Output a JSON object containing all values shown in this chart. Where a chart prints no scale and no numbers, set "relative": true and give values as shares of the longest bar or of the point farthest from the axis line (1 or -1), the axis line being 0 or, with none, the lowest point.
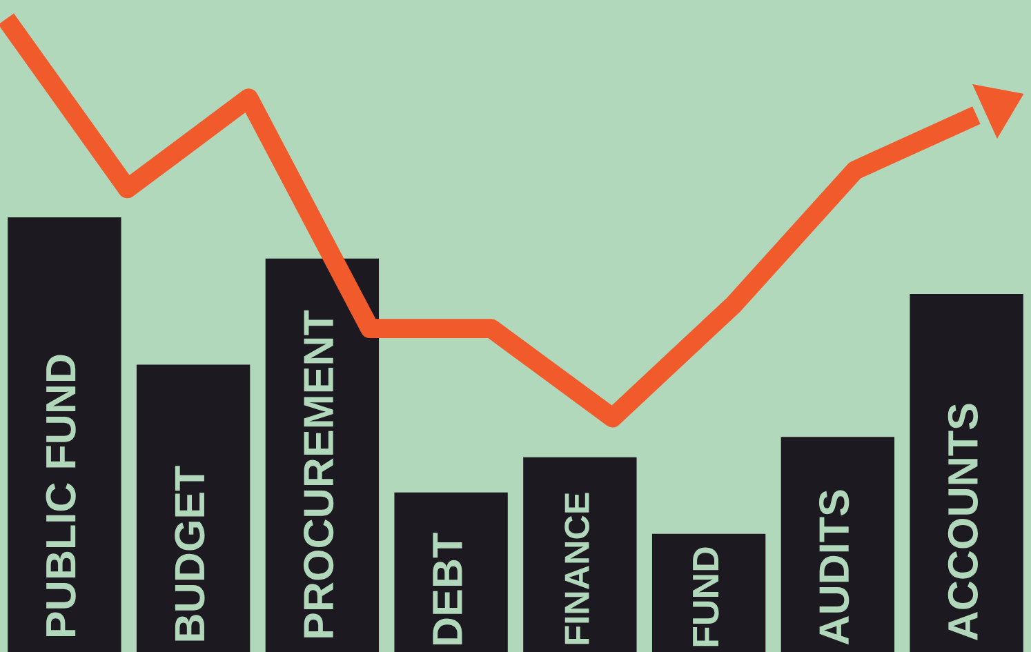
{
  "chart_data": [
    {
      "type": "bar",
      "relative": true,
      "categories": [
        "PUBLIC FUND",
        "BUDGET",
        "PROCUREMENT",
        "DEBT",
        "FINANCE",
        "FUND",
        "AUDITS",
        "ACCOUNTS"
      ],
      "series": [
        {
          "color": "#1c1a20",
          "values": [
            1,
            0.661,
            0.905,
            0.367,
            0.448,
            0.272,
            0.495,
            0.824
          ]
        }
      ]
    },
    {
      "type": "line",
      "relative": true,
      "categories": [
        null,
        null,
        null,
        null,
        null,
        null,
        null,
        null,
        null
      ],
      "series": [
        {
          "color": "#f15a2b",
          "values": [
            1,
            0.732,
            0.875,
            0.511,
            0.511,
            0.37,
            0.549,
            0.761,
            0.848
          ]
        }
      ]
    }
  ]
}
